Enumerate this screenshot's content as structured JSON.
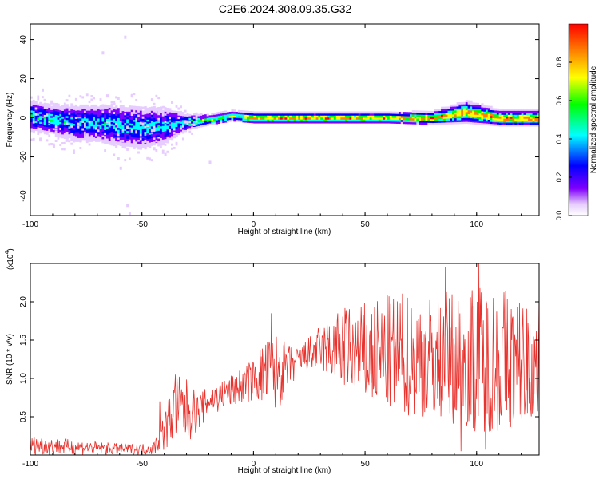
{
  "title": "C2E6.2024.308.09.35.G32",
  "chart_data": [
    {
      "type": "heatmap",
      "xlabel": "Height of straight line (km)",
      "ylabel": "Frequency (Hz)",
      "xlim": [
        -100,
        128
      ],
      "ylim": [
        -50,
        48
      ],
      "xticks": [
        -100,
        -50,
        0,
        50,
        100
      ],
      "yticks": [
        40,
        20,
        0,
        -20,
        -40
      ],
      "grid": false,
      "colorbar": {
        "label": "Normalized spectral amplitude",
        "range": [
          0,
          1
        ],
        "ticks": [
          "0.0",
          "0.2",
          "0.4",
          "0.6",
          "0.8"
        ],
        "colors": [
          "#ffffff",
          "#d9b3ff",
          "#8000ff",
          "#0000ff",
          "#00ffff",
          "#00ff00",
          "#ffff00",
          "#ff8000",
          "#ff0000"
        ]
      },
      "ridge": {
        "x": [
          -100,
          -90,
          -80,
          -70,
          -60,
          -50,
          -40,
          -30,
          -20,
          -10,
          0,
          20,
          40,
          60,
          80,
          95,
          110,
          128
        ],
        "center_hz": [
          1,
          -1,
          -2.5,
          -2.5,
          -4,
          -5,
          -4,
          -2,
          -1,
          1,
          0,
          0,
          0,
          0,
          0,
          3,
          0,
          0
        ],
        "halfwidth_hz": [
          6,
          6,
          7,
          7,
          8,
          8,
          7,
          3,
          2,
          2,
          2,
          2,
          2,
          2,
          2.5,
          4,
          3,
          3
        ]
      },
      "scatter_noise": {
        "x": [
          -95,
          -90,
          -75,
          -68,
          -66,
          -62,
          -60,
          -58,
          -57,
          -56,
          -45,
          -40,
          -20
        ],
        "y": [
          15,
          -14,
          -8,
          34,
          12,
          -14,
          -25,
          42,
          -44,
          -48,
          -15,
          -18,
          -22
        ]
      }
    },
    {
      "type": "line",
      "xlabel": "Height of straight line (km)",
      "ylabel": "SNR (10 * v/v)",
      "yscale_label": "(x10",
      "yscale_exp": "4",
      "xlim": [
        -100,
        128
      ],
      "ylim": [
        0,
        2.5
      ],
      "xticks": [
        -100,
        -50,
        0,
        50,
        100
      ],
      "yticks": [
        "0.5",
        "1.0",
        "1.5",
        "2.0"
      ],
      "grid": false,
      "color": "#e8322d",
      "envelope": {
        "x": [
          -100,
          -80,
          -60,
          -45,
          -40,
          -35,
          -30,
          -25,
          -20,
          -10,
          0,
          5,
          10,
          15,
          20,
          25,
          30,
          40,
          50,
          60,
          70,
          80,
          90,
          100,
          110,
          120,
          128
        ],
        "lo": [
          0.0,
          0.0,
          0.0,
          0.0,
          0.05,
          0.15,
          0.1,
          0.3,
          0.5,
          0.6,
          0.7,
          0.6,
          0.5,
          0.8,
          1.0,
          1.1,
          1.1,
          0.9,
          0.7,
          0.6,
          0.5,
          0.5,
          0.4,
          0.3,
          0.3,
          0.4,
          0.5
        ],
        "hi": [
          0.25,
          0.2,
          0.15,
          0.15,
          0.55,
          1.05,
          1.0,
          0.8,
          0.9,
          1.05,
          1.25,
          1.5,
          1.6,
          1.45,
          1.4,
          1.55,
          1.7,
          1.95,
          2.0,
          2.1,
          2.15,
          2.1,
          2.2,
          2.25,
          2.3,
          2.1,
          2.0
        ]
      },
      "spikes": [
        {
          "x": -42,
          "y": 0.7
        },
        {
          "x": -35,
          "y": 1.05
        },
        {
          "x": 8,
          "y": 1.85
        },
        {
          "x": 86,
          "y": 2.45
        },
        {
          "x": 101,
          "y": 2.52
        },
        {
          "x": 93,
          "y": 0.05
        },
        {
          "x": 104,
          "y": 0.07
        }
      ]
    }
  ]
}
